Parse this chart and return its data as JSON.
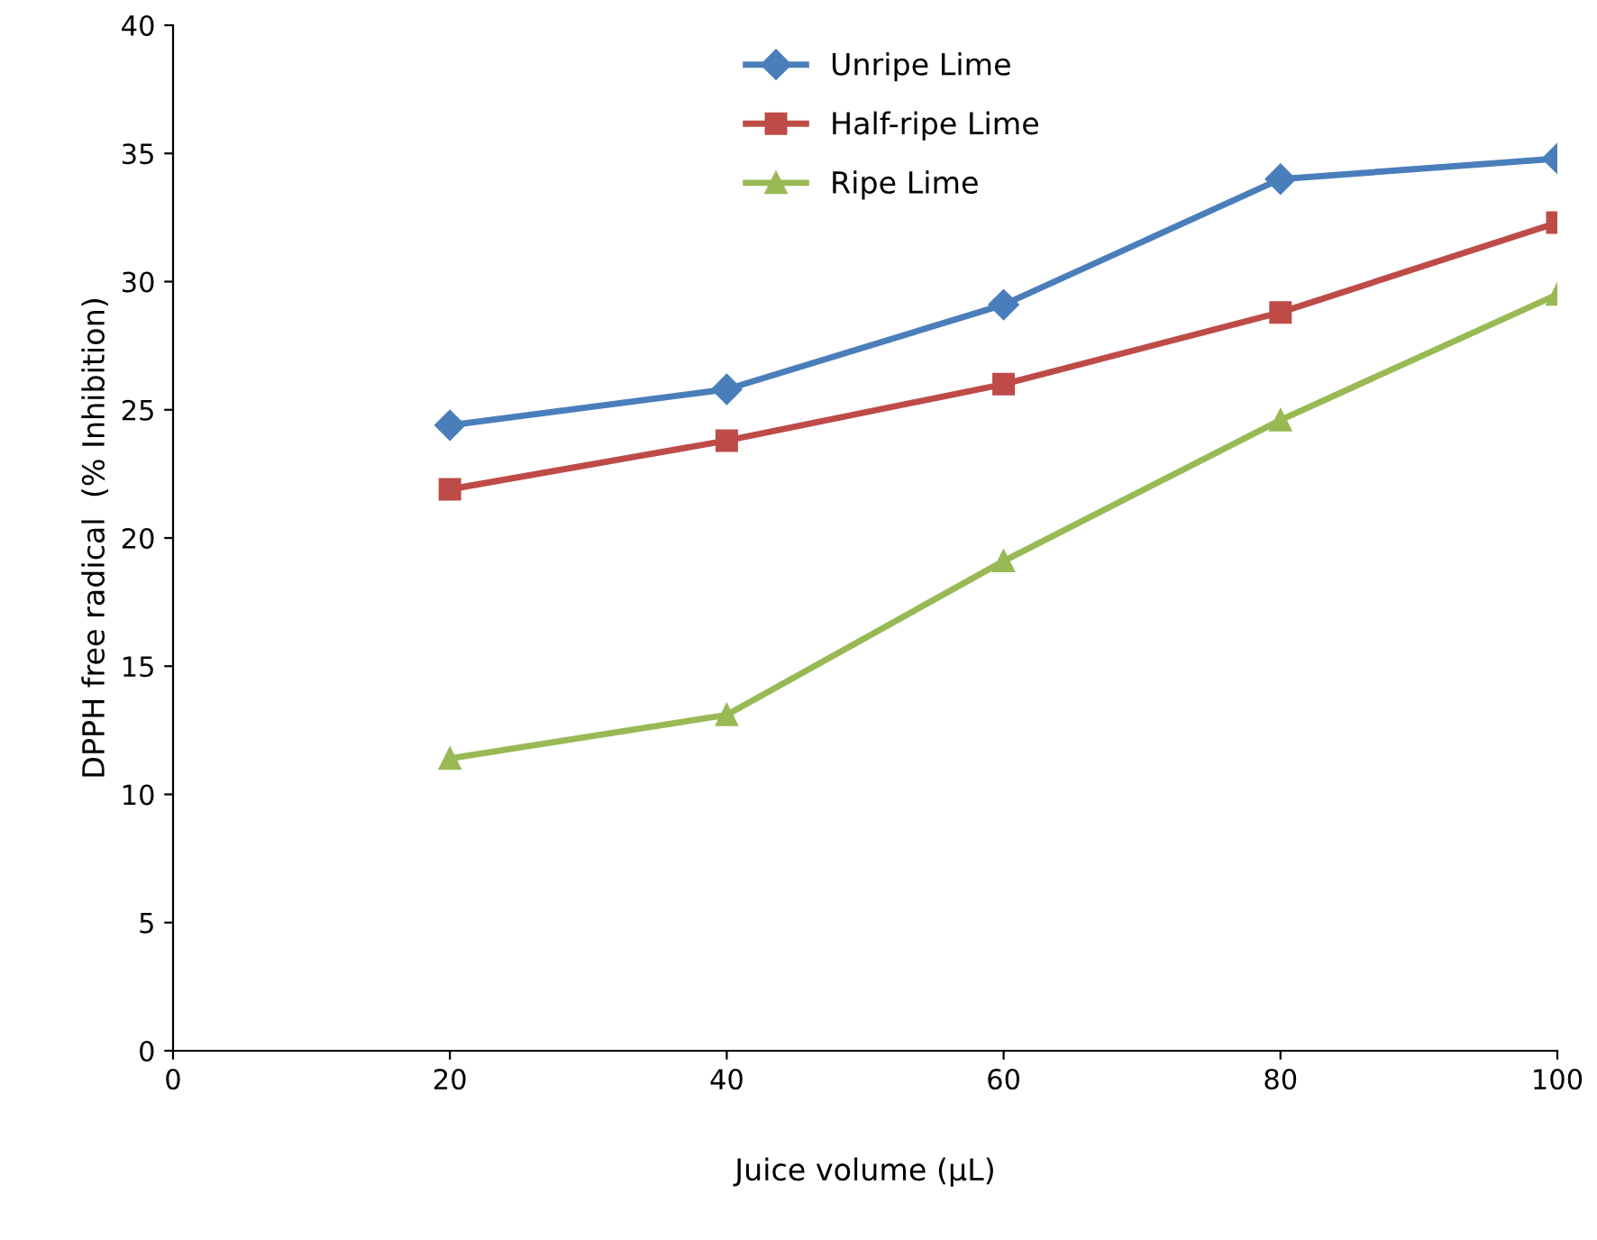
{
  "chart_data": {
    "type": "line",
    "xlabel": "Juice volume (µL)",
    "ylabel": "DPPH free radical  (% Inhibition)",
    "x": [
      20,
      40,
      60,
      80,
      100
    ],
    "xlim": [
      0,
      100
    ],
    "xticks": [
      0,
      20,
      40,
      60,
      80,
      100
    ],
    "ylim": [
      0,
      40
    ],
    "yticks": [
      0,
      5,
      10,
      15,
      20,
      25,
      30,
      35,
      40
    ],
    "grid": false,
    "legend": "top",
    "series": [
      {
        "name": "Unripe Lime",
        "color": "#4a7ebb",
        "marker": "diamond",
        "values": [
          24.4,
          25.8,
          29.1,
          34.0,
          34.8
        ]
      },
      {
        "name": "Half-ripe Lime",
        "color": "#be4b48",
        "marker": "square",
        "values": [
          21.9,
          23.8,
          26.0,
          28.8,
          32.3
        ]
      },
      {
        "name": "Ripe Lime",
        "color": "#98b954",
        "marker": "triangle",
        "values": [
          11.4,
          13.1,
          19.1,
          24.6,
          29.5
        ]
      }
    ]
  }
}
